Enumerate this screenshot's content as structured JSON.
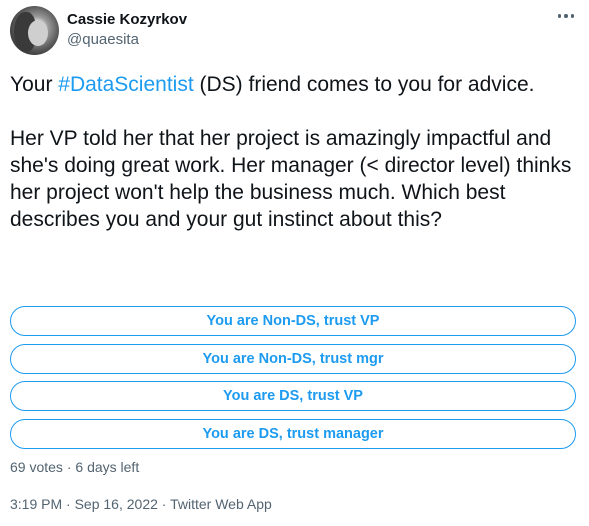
{
  "author": {
    "name": "Cassie Kozyrkov",
    "handle": "@quaesita"
  },
  "icons": {
    "more": "more-horizontal-icon"
  },
  "tweet": {
    "para1_before": "Your ",
    "hashtag": "#DataScientist",
    "para1_after": " (DS) friend comes to you for advice.",
    "para2": "Her VP told her that her project is amazingly impactful and she's doing great work. Her manager (< director level) thinks her project won't help the business much. Which best describes you and your gut instinct about this?"
  },
  "poll": {
    "options": [
      "You are Non-DS, trust VP",
      "You are Non-DS, trust mgr",
      "You are DS, trust VP",
      "You are DS, trust manager"
    ],
    "votes": "69 votes",
    "separator": " · ",
    "time_left": "6 days left"
  },
  "meta": {
    "time": "3:19 PM",
    "date": "Sep 16, 2022",
    "source": "Twitter Web App",
    "separator": " · "
  },
  "colors": {
    "accent": "#1d9bf0",
    "text": "#0f1419",
    "muted": "#536471"
  }
}
